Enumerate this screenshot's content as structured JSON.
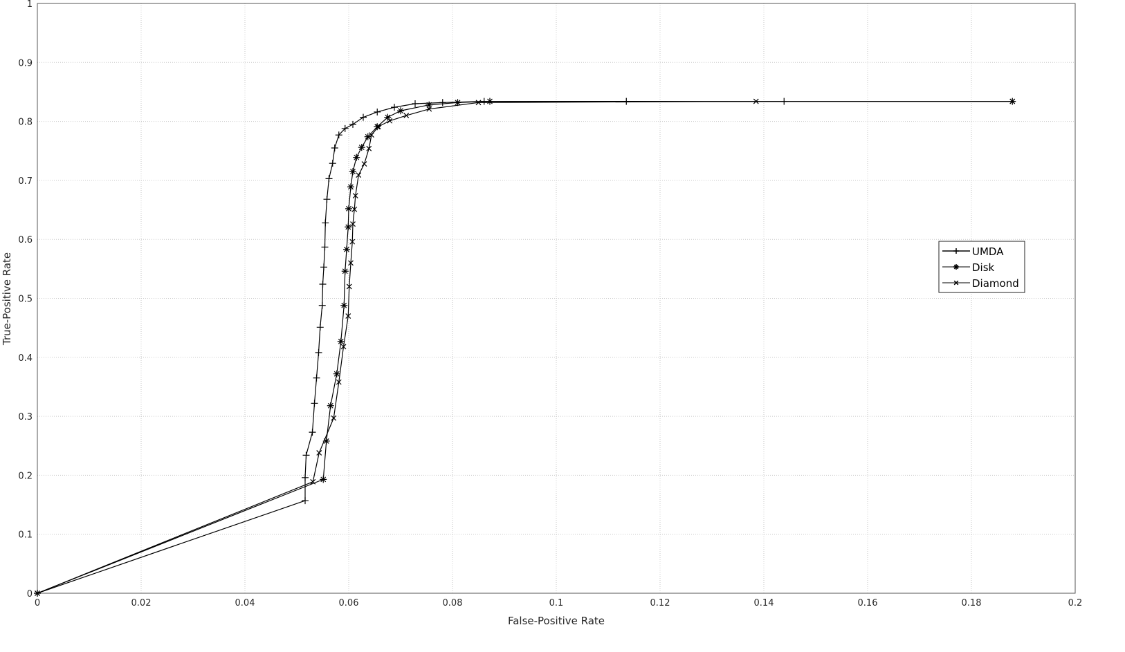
{
  "chart_data": {
    "type": "line",
    "title": "",
    "xlabel": "False-Positive Rate",
    "ylabel": "True-Positive Rate",
    "xlim": [
      0,
      0.2
    ],
    "ylim": [
      0,
      1
    ],
    "xticks": [
      "0",
      "0.02",
      "0.04",
      "0.06",
      "0.08",
      "0.1",
      "0.12",
      "0.14",
      "0.16",
      "0.18",
      "0.2"
    ],
    "yticks": [
      "0",
      "0.1",
      "0.2",
      "0.3",
      "0.4",
      "0.5",
      "0.6",
      "0.7",
      "0.8",
      "0.9",
      "1"
    ],
    "grid": true,
    "legend_position": "right",
    "line_color": "#000000",
    "grid_color": "#c8c8c8",
    "series": [
      {
        "name": "UMDA",
        "marker": "plus",
        "points": [
          [
            0,
            0
          ],
          [
            0.0516,
            0.157
          ],
          [
            0.0516,
            0.196
          ],
          [
            0.0518,
            0.234
          ],
          [
            0.053,
            0.273
          ],
          [
            0.0534,
            0.322
          ],
          [
            0.0538,
            0.365
          ],
          [
            0.0542,
            0.408
          ],
          [
            0.0545,
            0.451
          ],
          [
            0.0549,
            0.488
          ],
          [
            0.055,
            0.524
          ],
          [
            0.0552,
            0.553
          ],
          [
            0.0554,
            0.587
          ],
          [
            0.0555,
            0.628
          ],
          [
            0.0558,
            0.668
          ],
          [
            0.0562,
            0.703
          ],
          [
            0.0569,
            0.729
          ],
          [
            0.0573,
            0.755
          ],
          [
            0.0581,
            0.777
          ],
          [
            0.0593,
            0.788
          ],
          [
            0.0608,
            0.795
          ],
          [
            0.0628,
            0.807
          ],
          [
            0.0655,
            0.816
          ],
          [
            0.0688,
            0.824
          ],
          [
            0.0728,
            0.83
          ],
          [
            0.0781,
            0.832
          ],
          [
            0.0861,
            0.834
          ],
          [
            0.1135,
            0.834
          ],
          [
            0.1439,
            0.834
          ]
        ]
      },
      {
        "name": "Disk",
        "marker": "star",
        "points": [
          [
            0,
            0
          ],
          [
            0.0551,
            0.193
          ],
          [
            0.0557,
            0.258
          ],
          [
            0.0565,
            0.318
          ],
          [
            0.0577,
            0.372
          ],
          [
            0.0585,
            0.427
          ],
          [
            0.0591,
            0.488
          ],
          [
            0.0593,
            0.546
          ],
          [
            0.0596,
            0.583
          ],
          [
            0.0599,
            0.621
          ],
          [
            0.06,
            0.652
          ],
          [
            0.0604,
            0.689
          ],
          [
            0.0608,
            0.715
          ],
          [
            0.0615,
            0.739
          ],
          [
            0.0625,
            0.756
          ],
          [
            0.0637,
            0.774
          ],
          [
            0.0655,
            0.791
          ],
          [
            0.0675,
            0.807
          ],
          [
            0.07,
            0.818
          ],
          [
            0.0755,
            0.828
          ],
          [
            0.081,
            0.832
          ],
          [
            0.0872,
            0.834
          ],
          [
            0.1879,
            0.834
          ]
        ]
      },
      {
        "name": "Diamond",
        "marker": "x",
        "points": [
          [
            0,
            0
          ],
          [
            0.0531,
            0.189
          ],
          [
            0.0543,
            0.238
          ],
          [
            0.0571,
            0.297
          ],
          [
            0.0581,
            0.358
          ],
          [
            0.059,
            0.418
          ],
          [
            0.0599,
            0.47
          ],
          [
            0.0601,
            0.52
          ],
          [
            0.0604,
            0.56
          ],
          [
            0.0607,
            0.596
          ],
          [
            0.0608,
            0.626
          ],
          [
            0.0611,
            0.651
          ],
          [
            0.0613,
            0.674
          ],
          [
            0.0619,
            0.709
          ],
          [
            0.063,
            0.728
          ],
          [
            0.0639,
            0.754
          ],
          [
            0.0644,
            0.777
          ],
          [
            0.0657,
            0.791
          ],
          [
            0.0679,
            0.801
          ],
          [
            0.0711,
            0.81
          ],
          [
            0.0755,
            0.821
          ],
          [
            0.085,
            0.832
          ],
          [
            0.1385,
            0.834
          ],
          [
            0.1879,
            0.834
          ]
        ]
      }
    ]
  }
}
